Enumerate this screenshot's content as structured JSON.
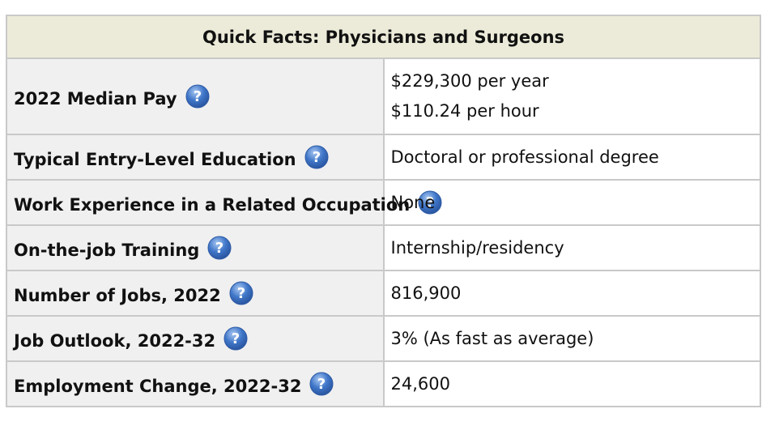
{
  "table": {
    "title": "Quick Facts: Physicians and Surgeons",
    "rows": [
      {
        "label": "2022 Median Pay",
        "values": [
          "$229,300 per year",
          "$110.24 per hour"
        ]
      },
      {
        "label": "Typical Entry-Level Education",
        "values": [
          "Doctoral or professional degree"
        ]
      },
      {
        "label": "Work Experience in a Related Occupation",
        "values": [
          "None"
        ]
      },
      {
        "label": "On-the-job Training",
        "values": [
          "Internship/residency"
        ]
      },
      {
        "label": "Number of Jobs, 2022",
        "values": [
          "816,900"
        ]
      },
      {
        "label": "Job Outlook, 2022-32",
        "values": [
          "3% (As fast as average)"
        ]
      },
      {
        "label": "Employment Change, 2022-32",
        "values": [
          "24,600"
        ]
      }
    ]
  },
  "icons": {
    "help": "question-mark-help-icon"
  },
  "colors": {
    "caption_background": "#ecebd9",
    "label_background": "#f0f0f0",
    "border": "#c9c9c9",
    "help_icon_blue": "#3f76c8"
  }
}
